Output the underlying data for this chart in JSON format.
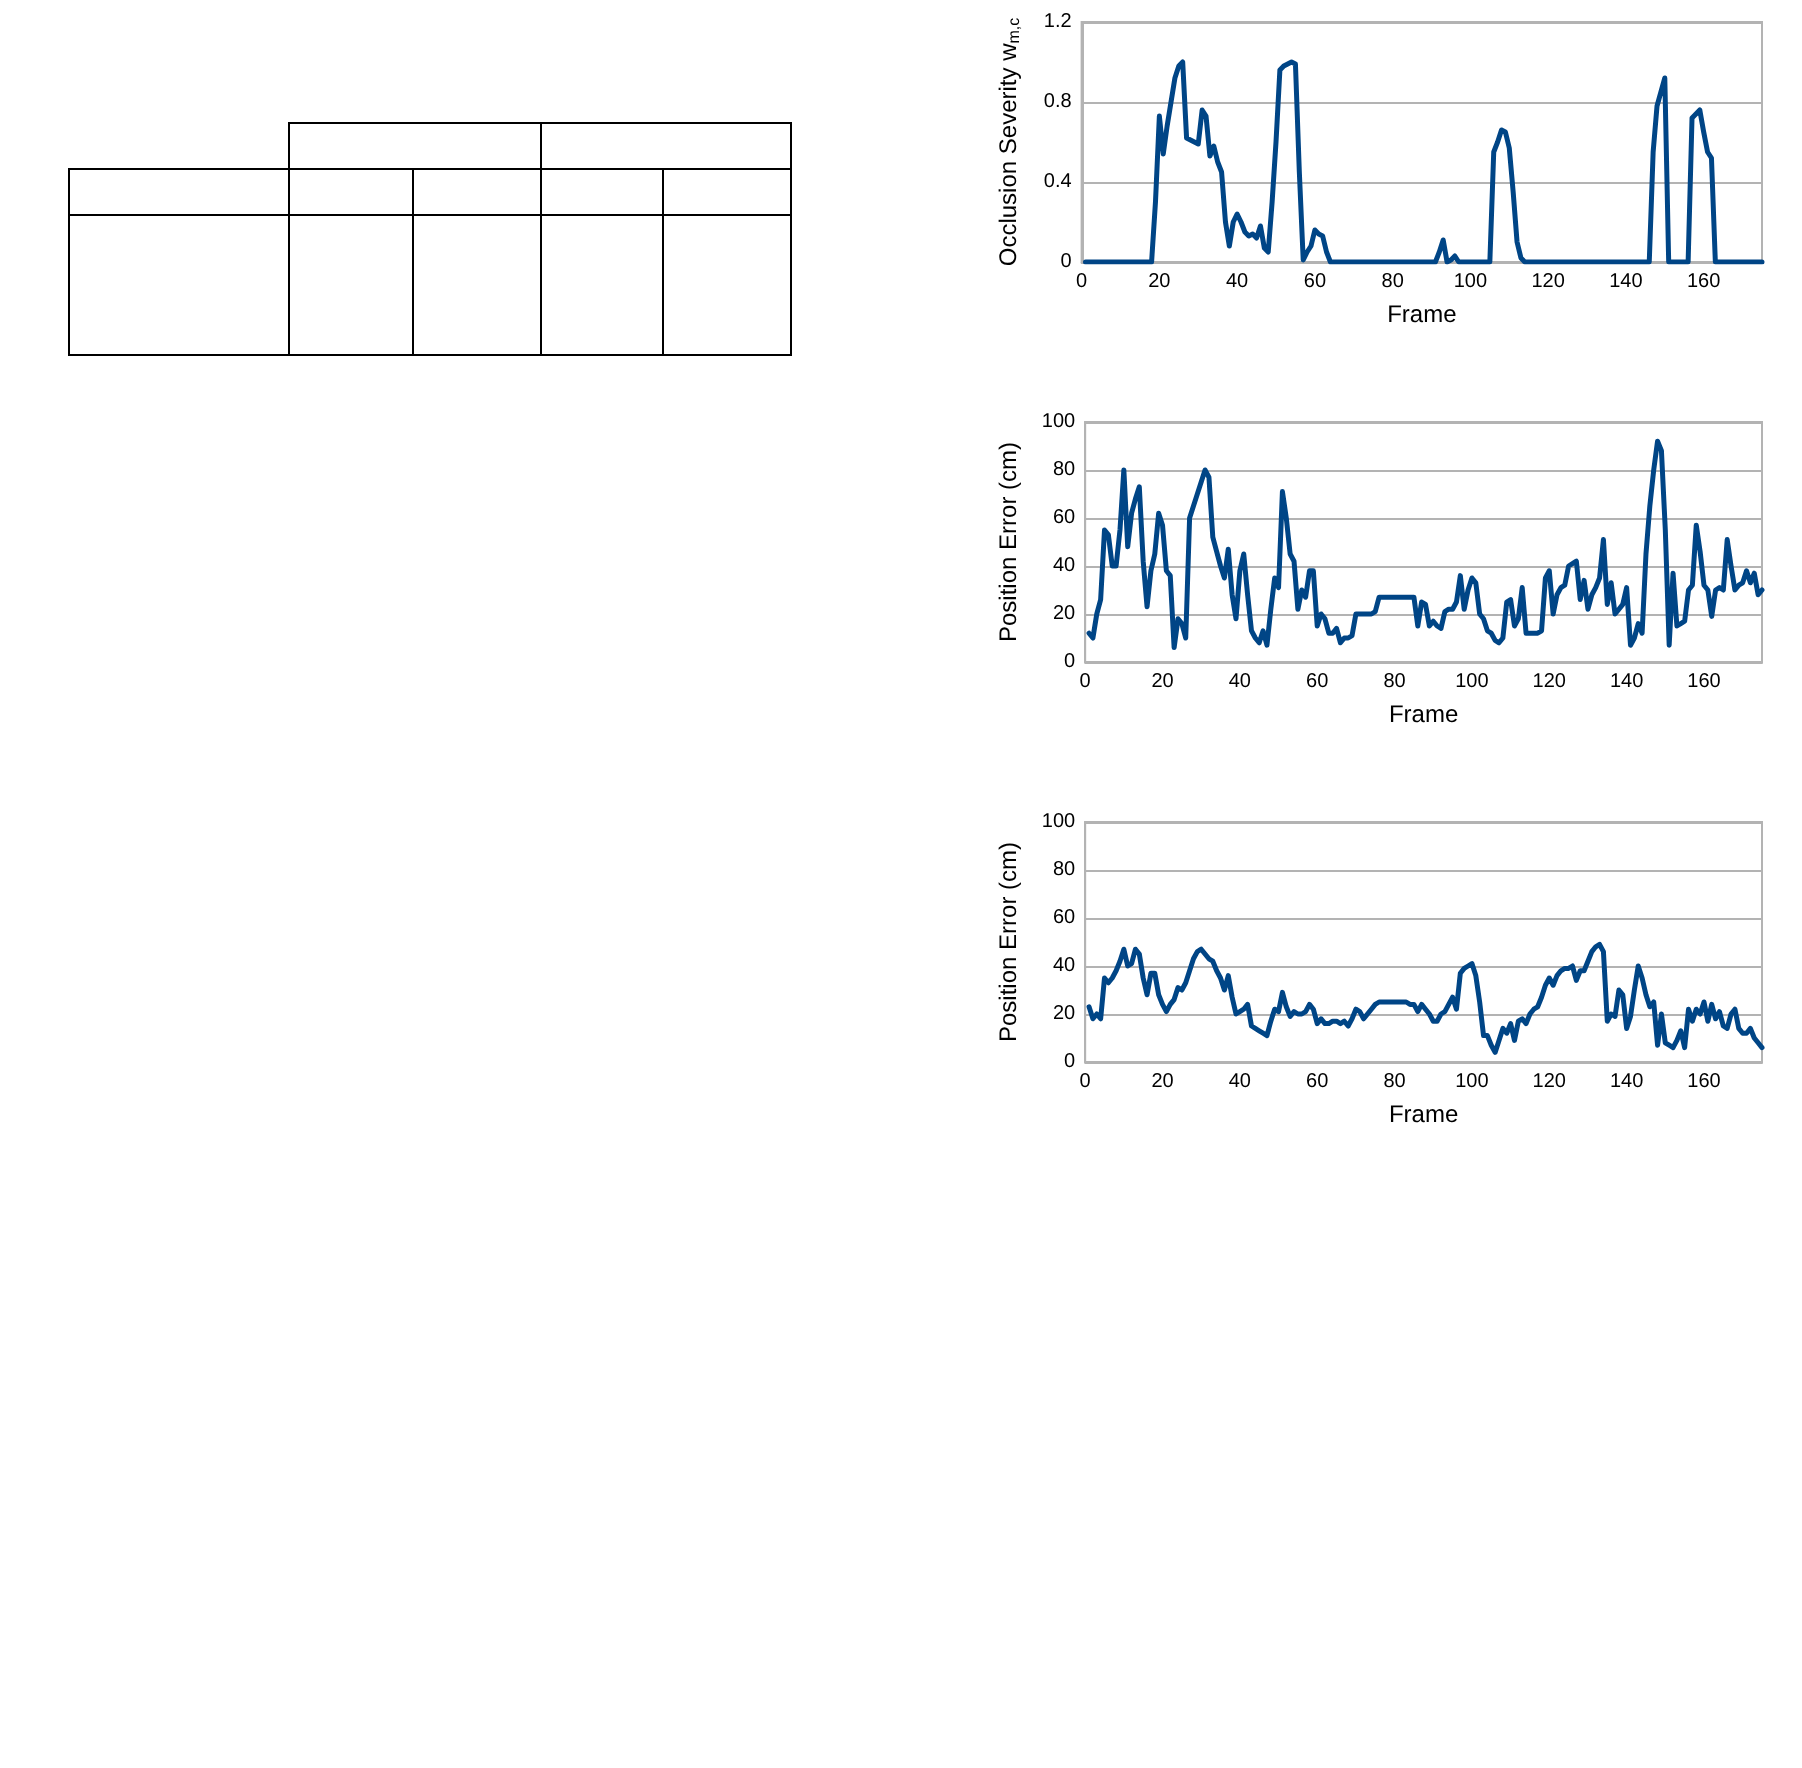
{
  "chart_data": [
    {
      "type": "line",
      "xlabel": "Frame",
      "ylabel": "Occlusion Severity w$_{m,c}$",
      "color": "#004586",
      "marker": "none",
      "grid": "y",
      "xlim": [
        0,
        175
      ],
      "xticks": [
        0,
        20,
        40,
        60,
        80,
        100,
        120,
        140,
        160
      ],
      "ylim": [
        0,
        1.2
      ],
      "yticks": [
        0,
        0.4,
        0.8,
        1.2
      ],
      "x": [
        1,
        18,
        19,
        20,
        21,
        22,
        23,
        24,
        25,
        26,
        27,
        28,
        29,
        30,
        31,
        32,
        33,
        34,
        35,
        36,
        37,
        38,
        39,
        40,
        41,
        42,
        43,
        44,
        45,
        46,
        47,
        48,
        49,
        50,
        51,
        52,
        53,
        54,
        55,
        56,
        57,
        58,
        59,
        60,
        61,
        62,
        63,
        64,
        91,
        92,
        93,
        94,
        95,
        96,
        97,
        105,
        106,
        107,
        108,
        109,
        110,
        111,
        112,
        113,
        114,
        146,
        147,
        148,
        149,
        150,
        151,
        156,
        157,
        158,
        159,
        160,
        161,
        162,
        163,
        175
      ],
      "values": [
        0,
        0,
        0.3,
        0.73,
        0.54,
        0.68,
        0.8,
        0.92,
        0.98,
        1.0,
        0.62,
        0.61,
        0.6,
        0.59,
        0.76,
        0.73,
        0.53,
        0.58,
        0.5,
        0.45,
        0.2,
        0.08,
        0.2,
        0.24,
        0.2,
        0.15,
        0.13,
        0.14,
        0.12,
        0.18,
        0.07,
        0.05,
        0.3,
        0.6,
        0.96,
        0.98,
        0.99,
        1.0,
        0.99,
        0.45,
        0.01,
        0.05,
        0.08,
        0.16,
        0.14,
        0.13,
        0.05,
        0,
        0,
        0.05,
        0.11,
        0,
        0.01,
        0.03,
        0,
        0,
        0.55,
        0.6,
        0.66,
        0.65,
        0.57,
        0.35,
        0.1,
        0.02,
        0,
        0,
        0.55,
        0.78,
        0.85,
        0.92,
        0,
        0,
        0.72,
        0.74,
        0.76,
        0.65,
        0.55,
        0.52,
        0,
        0
      ]
    },
    {
      "type": "line",
      "xlabel": "Frame",
      "ylabel": "Position Error (cm)",
      "color": "#004586",
      "marker": "none",
      "grid": "y",
      "xlim": [
        0,
        175
      ],
      "xticks": [
        0,
        20,
        40,
        60,
        80,
        100,
        120,
        140,
        160
      ],
      "ylim": [
        0,
        100
      ],
      "yticks": [
        0,
        20,
        40,
        60,
        80,
        100
      ],
      "x": [
        1,
        2,
        3,
        4,
        5,
        6,
        7,
        8,
        9,
        10,
        11,
        12,
        13,
        14,
        15,
        16,
        17,
        18,
        19,
        20,
        21,
        22,
        23,
        24,
        25,
        26,
        27,
        28,
        29,
        30,
        31,
        32,
        33,
        34,
        35,
        36,
        37,
        38,
        39,
        40,
        41,
        42,
        43,
        44,
        45,
        46,
        47,
        48,
        49,
        50,
        51,
        52,
        53,
        54,
        55,
        56,
        57,
        58,
        59,
        60,
        61,
        62,
        63,
        64,
        65,
        66,
        67,
        68,
        69,
        70,
        71,
        72,
        73,
        74,
        75,
        76,
        77,
        78,
        79,
        80,
        81,
        82,
        83,
        84,
        85,
        86,
        87,
        88,
        89,
        90,
        91,
        92,
        93,
        94,
        95,
        96,
        97,
        98,
        99,
        100,
        101,
        102,
        103,
        104,
        105,
        106,
        107,
        108,
        109,
        110,
        111,
        112,
        113,
        114,
        115,
        116,
        117,
        118,
        119,
        120,
        121,
        122,
        123,
        124,
        125,
        126,
        127,
        128,
        129,
        130,
        131,
        132,
        133,
        134,
        135,
        136,
        137,
        138,
        139,
        140,
        141,
        142,
        143,
        144,
        145,
        146,
        147,
        148,
        149,
        150,
        151,
        152,
        153,
        154,
        155,
        156,
        157,
        158,
        159,
        160,
        161,
        162,
        163,
        164,
        165,
        166,
        167,
        168,
        169,
        170,
        171,
        172,
        173,
        174,
        175
      ],
      "values": [
        12,
        10,
        20,
        26,
        55,
        53,
        40,
        40,
        55,
        80,
        48,
        62,
        68,
        73,
        42,
        23,
        38,
        45,
        62,
        57,
        38,
        36,
        6,
        18,
        16,
        10,
        60,
        65,
        70,
        75,
        80,
        77,
        52,
        46,
        40,
        35,
        47,
        28,
        18,
        38,
        45,
        28,
        13,
        10,
        8,
        13,
        7,
        22,
        35,
        31,
        71,
        60,
        45,
        42,
        22,
        30,
        27,
        38,
        38,
        15,
        20,
        18,
        12,
        12,
        14,
        8,
        10,
        10,
        11,
        20,
        20,
        20,
        20,
        20,
        21,
        27,
        27,
        27,
        27,
        27,
        27,
        27,
        27,
        27,
        27,
        15,
        25,
        24,
        15,
        17,
        15,
        14,
        21,
        22,
        22,
        25,
        36,
        22,
        30,
        35,
        33,
        20,
        18,
        13,
        12,
        9,
        8,
        10,
        25,
        26,
        15,
        18,
        31,
        12,
        12,
        12,
        12,
        13,
        35,
        38,
        20,
        28,
        31,
        32,
        40,
        41,
        42,
        26,
        34,
        22,
        28,
        31,
        35,
        51,
        24,
        33,
        20,
        22,
        24,
        31,
        7,
        10,
        16,
        12,
        45,
        65,
        80,
        92,
        88,
        55,
        7,
        37,
        15,
        16,
        17,
        30,
        32,
        57,
        46,
        32,
        30,
        19,
        30,
        31,
        30,
        51,
        40,
        30,
        32,
        33,
        38,
        33,
        37,
        28,
        30
      ]
    },
    {
      "type": "line",
      "xlabel": "Frame",
      "ylabel": "Position Error (cm)",
      "color": "#004586",
      "marker": "none",
      "grid": "y",
      "xlim": [
        0,
        175
      ],
      "xticks": [
        0,
        20,
        40,
        60,
        80,
        100,
        120,
        140,
        160
      ],
      "ylim": [
        0,
        100
      ],
      "yticks": [
        0,
        20,
        40,
        60,
        80,
        100
      ],
      "x": [
        1,
        2,
        3,
        4,
        5,
        6,
        7,
        8,
        9,
        10,
        11,
        12,
        13,
        14,
        15,
        16,
        17,
        18,
        19,
        20,
        21,
        22,
        23,
        24,
        25,
        26,
        27,
        28,
        29,
        30,
        31,
        32,
        33,
        34,
        35,
        36,
        37,
        38,
        39,
        40,
        41,
        42,
        43,
        44,
        45,
        46,
        47,
        48,
        49,
        50,
        51,
        52,
        53,
        54,
        55,
        56,
        57,
        58,
        59,
        60,
        61,
        62,
        63,
        64,
        65,
        66,
        67,
        68,
        69,
        70,
        71,
        72,
        73,
        74,
        75,
        76,
        77,
        78,
        79,
        80,
        81,
        82,
        83,
        84,
        85,
        86,
        87,
        88,
        89,
        90,
        91,
        92,
        93,
        94,
        95,
        96,
        97,
        98,
        99,
        100,
        101,
        102,
        103,
        104,
        105,
        106,
        107,
        108,
        109,
        110,
        111,
        112,
        113,
        114,
        115,
        116,
        117,
        118,
        119,
        120,
        121,
        122,
        123,
        124,
        125,
        126,
        127,
        128,
        129,
        130,
        131,
        132,
        133,
        134,
        135,
        136,
        137,
        138,
        139,
        140,
        141,
        142,
        143,
        144,
        145,
        146,
        147,
        148,
        149,
        150,
        151,
        152,
        153,
        154,
        155,
        156,
        157,
        158,
        159,
        160,
        161,
        162,
        163,
        164,
        165,
        166,
        167,
        168,
        169,
        170,
        171,
        172,
        173,
        174,
        175
      ],
      "values": [
        23,
        18,
        20,
        18,
        35,
        33,
        35,
        38,
        42,
        47,
        40,
        41,
        47,
        45,
        35,
        28,
        37,
        37,
        28,
        24,
        21,
        24,
        26,
        31,
        30,
        33,
        38,
        43,
        46,
        47,
        45,
        43,
        42,
        38,
        35,
        30,
        36,
        27,
        20,
        21,
        22,
        24,
        15,
        14,
        13,
        12,
        11,
        17,
        22,
        21,
        29,
        23,
        19,
        21,
        20,
        20,
        21,
        24,
        22,
        16,
        18,
        16,
        16,
        17,
        17,
        16,
        17,
        15,
        18,
        22,
        21,
        18,
        20,
        22,
        24,
        25,
        25,
        25,
        25,
        25,
        25,
        25,
        25,
        24,
        24,
        21,
        24,
        22,
        20,
        17,
        17,
        20,
        21,
        24,
        27,
        22,
        37,
        39,
        40,
        41,
        36,
        25,
        11,
        11,
        7,
        4,
        9,
        14,
        12,
        16,
        9,
        17,
        18,
        16,
        20,
        22,
        23,
        27,
        32,
        35,
        32,
        36,
        38,
        39,
        39,
        40,
        34,
        38,
        38,
        42,
        46,
        48,
        49,
        46,
        17,
        20,
        19,
        30,
        28,
        14,
        19,
        30,
        40,
        35,
        28,
        23,
        25,
        7,
        20,
        8,
        7,
        6,
        9,
        13,
        6,
        22,
        17,
        22,
        20,
        25,
        17,
        24,
        18,
        21,
        15,
        14,
        20,
        22,
        14,
        12,
        12,
        14,
        10,
        8,
        6
      ]
    }
  ]
}
